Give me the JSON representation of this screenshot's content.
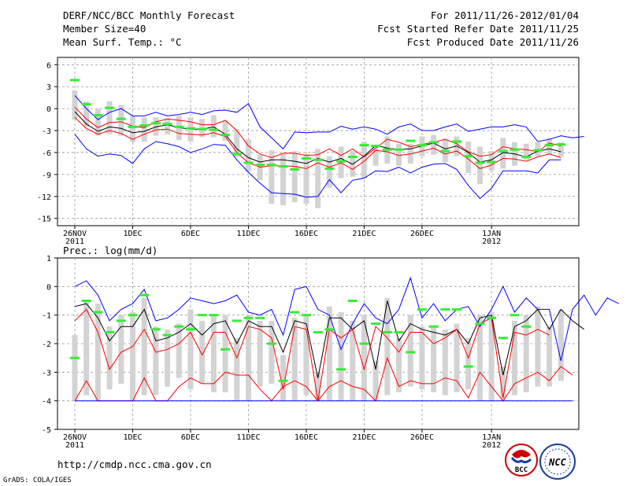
{
  "header": {
    "title_left_1": "DERF/NCC/BCC Monthly Forecast",
    "title_left_2": "Member Size=40",
    "title_left_3": "Mean Surf. Temp.: °C",
    "title_right_1": "For 2011/11/26-2012/01/04",
    "title_right_2": "Fcst Started Refer Date 2011/11/25",
    "title_right_3": "Fcst Produced Date 2011/11/26"
  },
  "footer": {
    "url": "http://cmdp.ncc.cma.gov.cn",
    "credit": "GrADS: COLA/IGES",
    "logo1_text": "BCC",
    "logo2_text": "NCC"
  },
  "colors": {
    "envelope": "#0000ff",
    "spread": "#ff0000",
    "mean": "#000000",
    "bar": "#d3d3d3",
    "marker": "#33ee33"
  },
  "chart_data": [
    {
      "type": "box-line",
      "title": "Mean Surf. Temp.: °C",
      "x_tick_labels": [
        "26NOV\n2011",
        "1DEC",
        "6DEC",
        "11DEC",
        "16DEC",
        "21DEC",
        "26DEC",
        "1JAN\n2012"
      ],
      "x_tick_days": [
        1,
        6,
        11,
        16,
        21,
        26,
        31,
        37
      ],
      "xlim": [
        1,
        40
      ],
      "ylim": [
        -16,
        7
      ],
      "y_ticks": [
        6,
        3,
        0,
        -3,
        -6,
        -9,
        -12,
        -15
      ],
      "series": [
        {
          "name": "max",
          "color": "#0000ff",
          "values": [
            1.8,
            0,
            -1.5,
            -0.5,
            0,
            -1,
            -1,
            -0.5,
            -1,
            -0.8,
            -0.5,
            -0.8,
            -0.3,
            -0.2,
            -0.5,
            0.7,
            -2.5,
            -4,
            -5.5,
            -3.2,
            -3.3,
            -3.2,
            -3.2,
            -2.4,
            -2.8,
            -2.5,
            -2.8,
            -3.5,
            -2.5,
            -2.1,
            -3,
            -3,
            -2.5,
            -2.1,
            -3.1,
            -2.8,
            -2.5,
            -2.5,
            -2.2,
            -2.5,
            -4.5,
            -4.2,
            -3.7,
            -4,
            -3.8
          ]
        },
        {
          "name": "upper",
          "color": "#ff0000",
          "values": [
            0.2,
            -1.4,
            -2.6,
            -1.9,
            -1.8,
            -2.4,
            -2.6,
            -1.8,
            -1.4,
            -1.6,
            -1.8,
            -2.2,
            -2.2,
            -1.6,
            -3,
            -5.1,
            -6.2,
            -6.7,
            -6.1,
            -6.1,
            -6.4,
            -6.3,
            -5.5,
            -6.4,
            -5.5,
            -6.6,
            -5.4,
            -4.2,
            -4.6,
            -5.2,
            -4.9,
            -4.6,
            -4.2,
            -4.8,
            -5.9,
            -6.5,
            -6.3,
            -5.2,
            -5.5,
            -5.6,
            -5.9,
            -4.7,
            -5.1
          ]
        },
        {
          "name": "mean",
          "color": "#000000",
          "values": [
            -0.4,
            -2.1,
            -3.1,
            -2.5,
            -2.7,
            -3.3,
            -3.1,
            -2.5,
            -2.2,
            -2.6,
            -2.8,
            -2.8,
            -2.5,
            -3.5,
            -5.5,
            -6.7,
            -7.3,
            -7.0,
            -7.0,
            -7.2,
            -7.5,
            -6.8,
            -7.3,
            -6.8,
            -7.6,
            -6.5,
            -5.0,
            -5.4,
            -5.6,
            -5.5,
            -5.1,
            -4.7,
            -5.5,
            -5.1,
            -6.0,
            -7.3,
            -7.0,
            -6.0,
            -6.2,
            -6.6,
            -5.8,
            -5.5,
            -5.9
          ]
        },
        {
          "name": "lower",
          "color": "#ff0000",
          "values": [
            -1.2,
            -2.7,
            -3.5,
            -3.0,
            -3.4,
            -4.2,
            -3.5,
            -2.9,
            -2.8,
            -3.4,
            -3.5,
            -3.6,
            -3.3,
            -3.8,
            -6.0,
            -7.4,
            -8.0,
            -7.8,
            -7.8,
            -7.9,
            -8.2,
            -7.4,
            -8.0,
            -7.4,
            -8.3,
            -7.2,
            -5.7,
            -5.9,
            -6.4,
            -6.2,
            -5.8,
            -5.4,
            -6.2,
            -5.8,
            -6.9,
            -8.2,
            -7.7,
            -6.8,
            -6.9,
            -7.2,
            -6.6,
            -6.2,
            -6.7
          ]
        },
        {
          "name": "min",
          "color": "#0000ff",
          "values": [
            -3.5,
            -5.5,
            -6.5,
            -6.2,
            -6.4,
            -7.5,
            -5.5,
            -4.5,
            -4.8,
            -5.2,
            -6,
            -5.5,
            -4.9,
            -5,
            -7,
            -8.7,
            -10.2,
            -11.5,
            -11.6,
            -11.7,
            -12.1,
            -12,
            -9.7,
            -11.5,
            -9.8,
            -9.5,
            -8.5,
            -8.6,
            -8,
            -8.8,
            -8,
            -7.6,
            -7.5,
            -8.3,
            -10.5,
            -12.3,
            -10.9,
            -8.5,
            -8.5,
            -8.5,
            -8.8,
            -7.0,
            -7.0
          ]
        }
      ],
      "boxes": [
        [
          2.5,
          -1.5
        ],
        [
          1,
          -2.5
        ],
        [
          0,
          -3.7
        ],
        [
          1,
          -3.5
        ],
        [
          0.5,
          -3.7
        ],
        [
          -1,
          -4.6
        ],
        [
          -1.2,
          -4.5
        ],
        [
          -1.2,
          -3.7
        ],
        [
          -1.3,
          -3.5
        ],
        [
          -1,
          -4.3
        ],
        [
          -1.2,
          -4.5
        ],
        [
          -1.4,
          -3.9
        ],
        [
          -0.9,
          -3.9
        ],
        [
          -1.7,
          -4.4
        ],
        [
          -2.8,
          -6.6
        ],
        [
          -4.2,
          -8.6
        ],
        [
          -6.3,
          -9.8
        ],
        [
          -5.7,
          -13
        ],
        [
          -6.2,
          -13.2
        ],
        [
          -5.8,
          -12.8
        ],
        [
          -6.2,
          -13
        ],
        [
          -5.5,
          -13.6
        ],
        [
          -6.5,
          -10.8
        ],
        [
          -5.2,
          -9.5
        ],
        [
          -5.8,
          -9.3
        ],
        [
          -4.5,
          -9.5
        ],
        [
          -5,
          -7.8
        ],
        [
          -3.8,
          -7.5
        ],
        [
          -4.8,
          -7.8
        ],
        [
          -4.8,
          -7.5
        ],
        [
          -3.8,
          -6.5
        ],
        [
          -3.6,
          -6.3
        ],
        [
          -4.2,
          -7.3
        ],
        [
          -3.8,
          -6.5
        ],
        [
          -4.5,
          -8.8
        ],
        [
          -5.2,
          -10.3
        ],
        [
          -5.8,
          -8.5
        ],
        [
          -4,
          -8.2
        ],
        [
          -4.6,
          -7.8
        ],
        [
          -4.8,
          -7
        ],
        [
          -4.6,
          -6.5
        ],
        [
          -4,
          -6.2
        ],
        [
          -4.6,
          -6.6
        ]
      ],
      "markers": [
        3.9,
        0.6,
        -0.9,
        0.1,
        -1.4,
        -2.5,
        -2.3,
        -2.0,
        -2.1,
        -2.5,
        -2.7,
        -2.8,
        -2.9,
        -3.6,
        -6.2,
        -7.4,
        -7.7,
        -7.7,
        -7.9,
        -8.3,
        -6.8,
        -7.0,
        -8.2,
        -7.2,
        -6.6,
        -5.0,
        -5.1,
        -5.6,
        -5.6,
        -4.4,
        -5.0,
        -4.6,
        -5.8,
        -4.5,
        -6.5,
        -7.4,
        -7.3,
        -5.8,
        -5.6,
        -6.6,
        -5.7,
        -5.0,
        -4.9
      ]
    },
    {
      "type": "box-line",
      "title": "Prec.: log(mm/d)",
      "x_tick_labels": [
        "26NOV\n2011",
        "1DEC",
        "6DEC",
        "11DEC",
        "16DEC",
        "21DEC",
        "26DEC",
        "1JAN\n2012"
      ],
      "x_tick_days": [
        1,
        6,
        11,
        16,
        21,
        26,
        31,
        37
      ],
      "xlim": [
        1,
        40
      ],
      "ylim": [
        -5,
        1
      ],
      "y_ticks": [
        1,
        0,
        -1,
        -2,
        -3,
        -4,
        -5
      ],
      "series": [
        {
          "name": "max",
          "color": "#0000ff",
          "values": [
            0,
            0.2,
            -0.3,
            -1.2,
            -0.8,
            -0.6,
            -0.1,
            -1.2,
            -1.1,
            -0.8,
            -0.4,
            -0.5,
            -0.6,
            -0.5,
            -0.3,
            -0.9,
            -1.0,
            -0.8,
            -1.7,
            -0.1,
            0,
            -0.8,
            -1.0,
            -2.2,
            -1.3,
            -0.6,
            -1.1,
            -1.3,
            -0.8,
            0.3,
            -1.1,
            -0.6,
            -1.2,
            -0.8,
            -0.7,
            -1.4,
            -0.8,
            0,
            -0.9,
            -0.4,
            -0.8,
            -0.8,
            -2.6,
            -0.8,
            -0.3,
            -1.0,
            -0.4,
            -0.6
          ]
        },
        {
          "name": "mean",
          "color": "#000000",
          "values": [
            -0.7,
            -0.6,
            -1.1,
            -1.9,
            -1.4,
            -1.4,
            -0.8,
            -1.9,
            -1.8,
            -1.6,
            -1.3,
            -1.7,
            -1.3,
            -1.2,
            -2.0,
            -1.2,
            -1.4,
            -1.4,
            -2.3,
            -1.2,
            -1.3,
            -3.2,
            -1.1,
            -1.1,
            -1.5,
            -1.2,
            -2.9,
            -0.5,
            -1.9,
            -1.3,
            -1.5,
            -1.6,
            -1.7,
            -1.5,
            -2.0,
            -1.1,
            -1.0,
            -3.1,
            -1.4,
            -1.2,
            -0.8,
            -1.5,
            -0.8,
            -1.2,
            -1.5
          ]
        },
        {
          "name": "upper",
          "color": "#ff0000",
          "values": [
            -1.2,
            -0.8,
            -1.6,
            -2.9,
            -2.3,
            -2.1,
            -1.5,
            -2.3,
            -2.2,
            -2.0,
            -1.6,
            -2.4,
            -1.6,
            -1.6,
            -2.5,
            -1.4,
            -1.5,
            -1.8,
            -3.6,
            -1.4,
            -1.5,
            -4.0,
            -1.5,
            -1.8,
            -1.5,
            -2.9,
            -1.4,
            -1.8,
            -2.3,
            -1.6,
            -1.6,
            -2.0,
            -1.8,
            -1.5,
            -2.5,
            -1.3,
            -1.1,
            -3.9,
            -1.6,
            -1.7,
            -1.5,
            -1.7
          ]
        },
        {
          "name": "lower",
          "color": "#ff0000",
          "values": [
            -4,
            -3.3,
            -4,
            -4,
            -4,
            -4,
            -3.2,
            -4,
            -4,
            -3.5,
            -3.2,
            -3.4,
            -3.4,
            -3.0,
            -3.1,
            -3.1,
            -3.6,
            -4,
            -3.5,
            -3.3,
            -3.5,
            -4,
            -3.5,
            -3.3,
            -3.5,
            -3.6,
            -4,
            -2.5,
            -3.5,
            -3.3,
            -3.4,
            -3.4,
            -3.2,
            -3.3,
            -3.9,
            -3.0,
            -3.5,
            -4,
            -3.4,
            -3.2,
            -3.0,
            -3.3,
            -2.8,
            -3.1
          ]
        },
        {
          "name": "min",
          "color": "#0000ff",
          "values": [
            -4,
            -4,
            -4,
            -4,
            -4,
            -4,
            -4,
            -4,
            -4,
            -4,
            -4,
            -4,
            -4,
            -4,
            -4,
            -4,
            -4,
            -4,
            -4,
            -4,
            -4,
            -4,
            -4,
            -4,
            -4,
            -4,
            -4,
            -4,
            -4,
            -4,
            -4,
            -4,
            -4,
            -4,
            -4,
            -4,
            -4,
            -4,
            -4,
            -4,
            -4,
            -4,
            -4,
            -4
          ]
        }
      ],
      "boxes": [
        [
          -1.7,
          -4
        ],
        [
          -0.5,
          -3.8
        ],
        [
          -0.6,
          -4
        ],
        [
          -1.4,
          -3.6
        ],
        [
          -1.0,
          -3.4
        ],
        [
          -0.9,
          -4
        ],
        [
          -0.4,
          -3.8
        ],
        [
          -1.4,
          -3.8
        ],
        [
          -1.5,
          -3.5
        ],
        [
          -1.3,
          -3.2
        ],
        [
          -0.8,
          -3.6
        ],
        [
          -1.2,
          -3.4
        ],
        [
          -1.0,
          -3.7
        ],
        [
          -1.0,
          -3.7
        ],
        [
          -1.8,
          -4
        ],
        [
          -1.0,
          -4
        ],
        [
          -1.2,
          -3.5
        ],
        [
          -1.2,
          -3.4
        ],
        [
          -2.4,
          -4
        ],
        [
          -1.1,
          -4
        ],
        [
          -1.0,
          -3.8
        ],
        [
          -3.0,
          -4
        ],
        [
          -0.7,
          -4
        ],
        [
          -0.9,
          -4
        ],
        [
          -1.2,
          -4
        ],
        [
          -1.0,
          -4
        ],
        [
          -2.6,
          -4
        ],
        [
          -0.4,
          -3.8
        ],
        [
          -1.8,
          -3.7
        ],
        [
          -1.0,
          -3.5
        ],
        [
          -1.4,
          -3.6
        ],
        [
          -1.4,
          -3.7
        ],
        [
          -1.5,
          -3.8
        ],
        [
          -1.3,
          -3.7
        ],
        [
          -1.8,
          -3.6
        ],
        [
          -1.0,
          -4
        ],
        [
          -0.9,
          -4
        ],
        [
          -2.8,
          -4
        ],
        [
          -1.2,
          -3.8
        ],
        [
          -1.0,
          -3.7
        ],
        [
          -0.7,
          -3.5
        ],
        [
          -1.4,
          -3.5
        ],
        [
          -0.8,
          -3.3
        ]
      ],
      "markers": [
        -2.5,
        -0.5,
        -0.9,
        -1.6,
        -1.2,
        -1.0,
        -0.3,
        -1.5,
        -1.7,
        -1.4,
        -1.5,
        -1.0,
        -1.0,
        -2.2,
        -1.2,
        -1.1,
        -1.1,
        -2.0,
        -3.3,
        -0.9,
        -1.0,
        -1.6,
        -1.5,
        -2.9,
        -0.5,
        -2.0,
        -1.3,
        -1.6,
        -1.6,
        -2.3,
        -0.8,
        -1.4,
        -0.8,
        -0.8,
        -2.8,
        -1.3,
        -1.1,
        -1.8,
        -1.0,
        -1.4
      ]
    }
  ]
}
